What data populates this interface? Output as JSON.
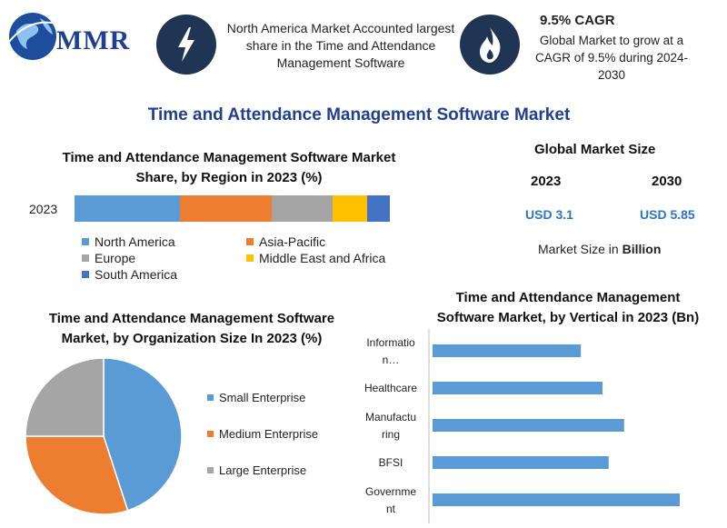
{
  "header": {
    "logo_text": "MMR",
    "highlight_text": "North America Market Accounted largest share in the Time and Attendance Management Software",
    "cagr_title": "9.5% CAGR",
    "cagr_text": "Global Market to grow at a CAGR of 9.5% during 2024-2030"
  },
  "main_title": "Time and Attendance Management Software Market",
  "global_market": {
    "title": "Global Market Size",
    "year_1": "2023",
    "year_2": "2030",
    "value_1": "USD 3.1",
    "value_2": "USD 5.85",
    "unit_prefix": "Market Size in ",
    "unit_bold": "Billion"
  },
  "colors": {
    "north_america": "#5b9bd5",
    "asia_pacific": "#ed7d31",
    "europe": "#a5a5a5",
    "middle_east_africa": "#ffc000",
    "south_america": "#4472c4",
    "badge": "#1f3553",
    "title_blue": "#1f3f8f"
  },
  "chart_data": [
    {
      "type": "bar",
      "orientation": "horizontal-stacked",
      "title": "Time and Attendance Management Software Market Share, by Region in 2023 (%)",
      "categories": [
        "2023"
      ],
      "series": [
        {
          "name": "North America",
          "values": [
            33
          ]
        },
        {
          "name": "Asia-Pacific",
          "values": [
            29
          ]
        },
        {
          "name": "Europe",
          "values": [
            19
          ]
        },
        {
          "name": "Middle East and Africa",
          "values": [
            11
          ]
        },
        {
          "name": "South America",
          "values": [
            7
          ]
        }
      ],
      "legend_position": "bottom"
    },
    {
      "type": "pie",
      "title": "Time and Attendance Management Software Market, by Organization Size In 2023 (%)",
      "labels": [
        "Small Enterprise",
        "Medium Enterprise",
        "Large Enterprise"
      ],
      "values": [
        45,
        30,
        25
      ],
      "colors": [
        "#5b9bd5",
        "#ed7d31",
        "#a5a5a5"
      ],
      "legend_position": "right"
    },
    {
      "type": "bar",
      "orientation": "horizontal",
      "title": "Time and Attendance Management Software Market, by Vertical in 2023 (Bn)",
      "categories": [
        "Informatio n…",
        "Healthcare",
        "Manufactu ring",
        "BFSI",
        "Governme nt"
      ],
      "values": [
        0.48,
        0.55,
        0.62,
        0.57,
        0.8
      ],
      "xlim": [
        0,
        0.9
      ],
      "color": "#5b9bd5"
    }
  ]
}
